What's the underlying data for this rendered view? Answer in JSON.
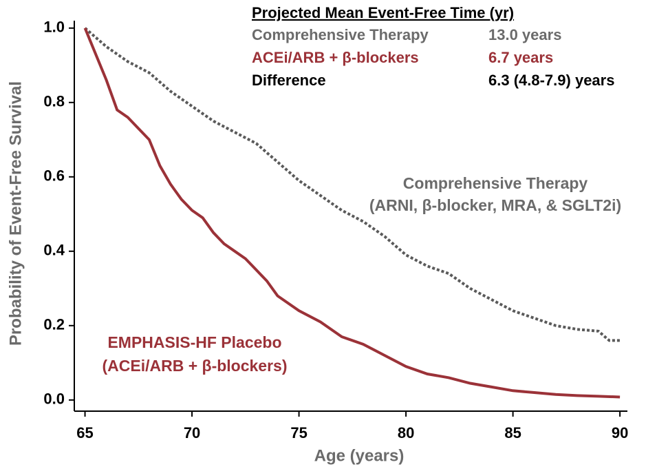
{
  "chart_data": {
    "type": "line",
    "x_label": "Age (years)",
    "y_label": "Probability of Event-Free Survival",
    "xlim": [
      64.5,
      90.35
    ],
    "ylim": [
      -0.03,
      1.02
    ],
    "xticks": [
      65,
      70,
      75,
      80,
      85,
      90
    ],
    "yticks": [
      {
        "value": 0,
        "label": "0.0"
      },
      {
        "value": 0.2,
        "label": "0.2"
      },
      {
        "value": 0.4,
        "label": "0.4"
      },
      {
        "value": 0.6,
        "label": "0.6"
      },
      {
        "value": 0.8,
        "label": "0.8"
      },
      {
        "value": 1,
        "label": "1.0"
      }
    ],
    "summary_title": "Projected Mean Event-Free Time (yr)",
    "summary_rows": [
      {
        "label": "Comprehensive Therapy",
        "value": "13.0 years",
        "color": "#6b6b6b"
      },
      {
        "label": "ACEi/ARB + β-blockers",
        "value": "6.7 years",
        "color": "#9b3238"
      },
      {
        "label": "Difference",
        "value": "6.3 (4.8-7.9) years",
        "color": "#000000"
      }
    ],
    "series": [
      {
        "name": "Comprehensive Therapy",
        "subtitle": "(ARNI, β-blocker, MRA, & SGLT2i)",
        "color": "#5a5a5a",
        "dashed": true,
        "x": [
          65,
          66,
          67,
          68,
          69,
          70,
          71,
          72,
          73,
          74,
          75,
          76,
          77,
          78,
          79,
          80,
          81,
          82,
          83,
          84,
          85,
          86,
          87,
          88,
          89,
          89.5,
          90
        ],
        "values": [
          1.0,
          0.95,
          0.91,
          0.88,
          0.83,
          0.79,
          0.75,
          0.72,
          0.69,
          0.64,
          0.59,
          0.55,
          0.51,
          0.48,
          0.44,
          0.39,
          0.36,
          0.34,
          0.3,
          0.27,
          0.24,
          0.22,
          0.2,
          0.19,
          0.185,
          0.16,
          0.16
        ]
      },
      {
        "name": "EMPHASIS-HF Placebo",
        "subtitle": "(ACEi/ARB + β-blockers)",
        "color": "#9b3238",
        "dashed": false,
        "x": [
          65,
          65.5,
          66,
          66.5,
          67,
          67.5,
          68,
          68.5,
          69,
          69.5,
          70,
          70.5,
          71,
          71.5,
          72,
          72.5,
          73,
          73.5,
          74,
          75,
          76,
          77,
          78,
          79,
          80,
          81,
          82,
          83,
          84,
          85,
          86,
          87,
          88,
          89,
          90
        ],
        "values": [
          1.0,
          0.93,
          0.86,
          0.78,
          0.76,
          0.73,
          0.7,
          0.63,
          0.58,
          0.54,
          0.51,
          0.49,
          0.45,
          0.42,
          0.4,
          0.38,
          0.35,
          0.32,
          0.28,
          0.24,
          0.21,
          0.17,
          0.15,
          0.12,
          0.09,
          0.07,
          0.06,
          0.045,
          0.035,
          0.025,
          0.02,
          0.015,
          0.012,
          0.01,
          0.008
        ]
      }
    ]
  }
}
